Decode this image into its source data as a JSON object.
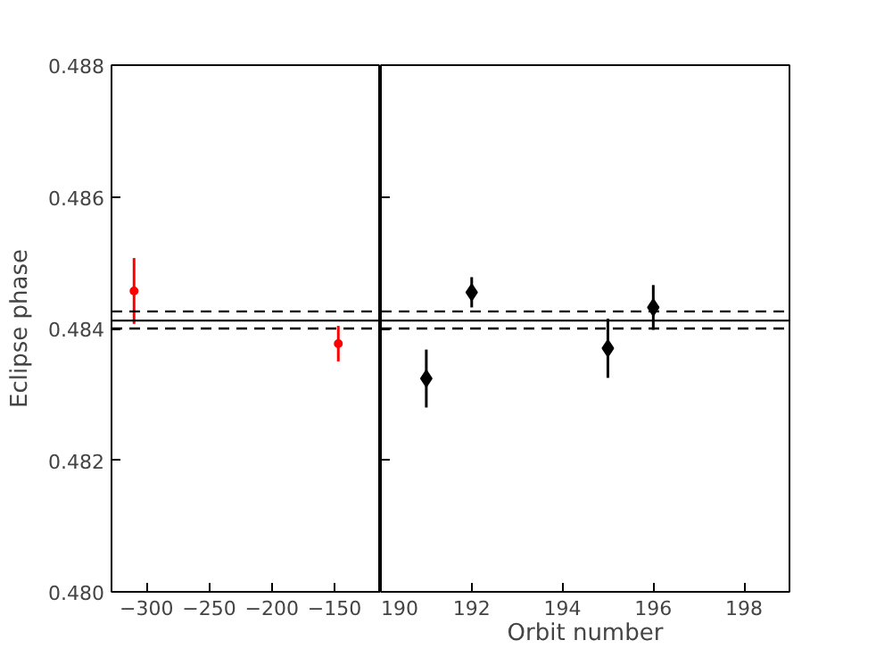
{
  "chart_data": [
    {
      "type": "scatter",
      "ylabel": "Eclipse phase",
      "xlim": [
        -328,
        -113
      ],
      "xticks": [
        {
          "value": -300,
          "label": "−300"
        },
        {
          "value": -250,
          "label": "−250"
        },
        {
          "value": -200,
          "label": "−200"
        },
        {
          "value": -150,
          "label": "−150"
        }
      ],
      "ylim": [
        0.48,
        0.488
      ],
      "yticks": [
        {
          "value": 0.48,
          "label": "0.480"
        },
        {
          "value": 0.482,
          "label": "0.482"
        },
        {
          "value": 0.484,
          "label": "0.484"
        },
        {
          "value": 0.486,
          "label": "0.486"
        },
        {
          "value": 0.488,
          "label": "0.488"
        }
      ],
      "grid": false,
      "marker": "circle",
      "series": [
        {
          "color": "#ff0000",
          "x": [
            -310,
            -147
          ],
          "values": [
            0.48457,
            0.48377
          ],
          "errors": [
            0.0005,
            0.00027
          ]
        }
      ],
      "ref_lines": [
        {
          "axis": "y",
          "value": 0.48412,
          "line_style": "solid",
          "color": "#000000"
        },
        {
          "axis": "y",
          "value": 0.48426,
          "line_style": "dashed",
          "color": "#000000"
        },
        {
          "axis": "y",
          "value": 0.484,
          "line_style": "dashed",
          "color": "#000000"
        }
      ]
    },
    {
      "type": "scatter",
      "xlabel": "Orbit number",
      "xlim": [
        190,
        199
      ],
      "xticks": [
        190,
        192,
        194,
        196,
        198
      ],
      "ylim": [
        0.48,
        0.488
      ],
      "yticks": [
        {
          "value": 0.48,
          "label": null
        },
        {
          "value": 0.482,
          "label": null
        },
        {
          "value": 0.484,
          "label": null
        },
        {
          "value": 0.486,
          "label": null
        },
        {
          "value": 0.488,
          "label": null
        }
      ],
      "tick_labels": "x",
      "grid": false,
      "marker": "diamond",
      "series": [
        {
          "color": "#000000",
          "x": [
            191,
            192,
            195,
            196
          ],
          "values": [
            0.48324,
            0.48455,
            0.4837,
            0.48432
          ],
          "errors": [
            0.00044,
            0.00023,
            0.00045,
            0.00034
          ]
        }
      ],
      "ref_lines": [
        {
          "axis": "y",
          "value": 0.48412,
          "line_style": "solid",
          "color": "#000000"
        },
        {
          "axis": "y",
          "value": 0.48426,
          "line_style": "dashed",
          "color": "#000000"
        },
        {
          "axis": "y",
          "value": 0.484,
          "line_style": "dashed",
          "color": "#000000"
        }
      ]
    }
  ]
}
